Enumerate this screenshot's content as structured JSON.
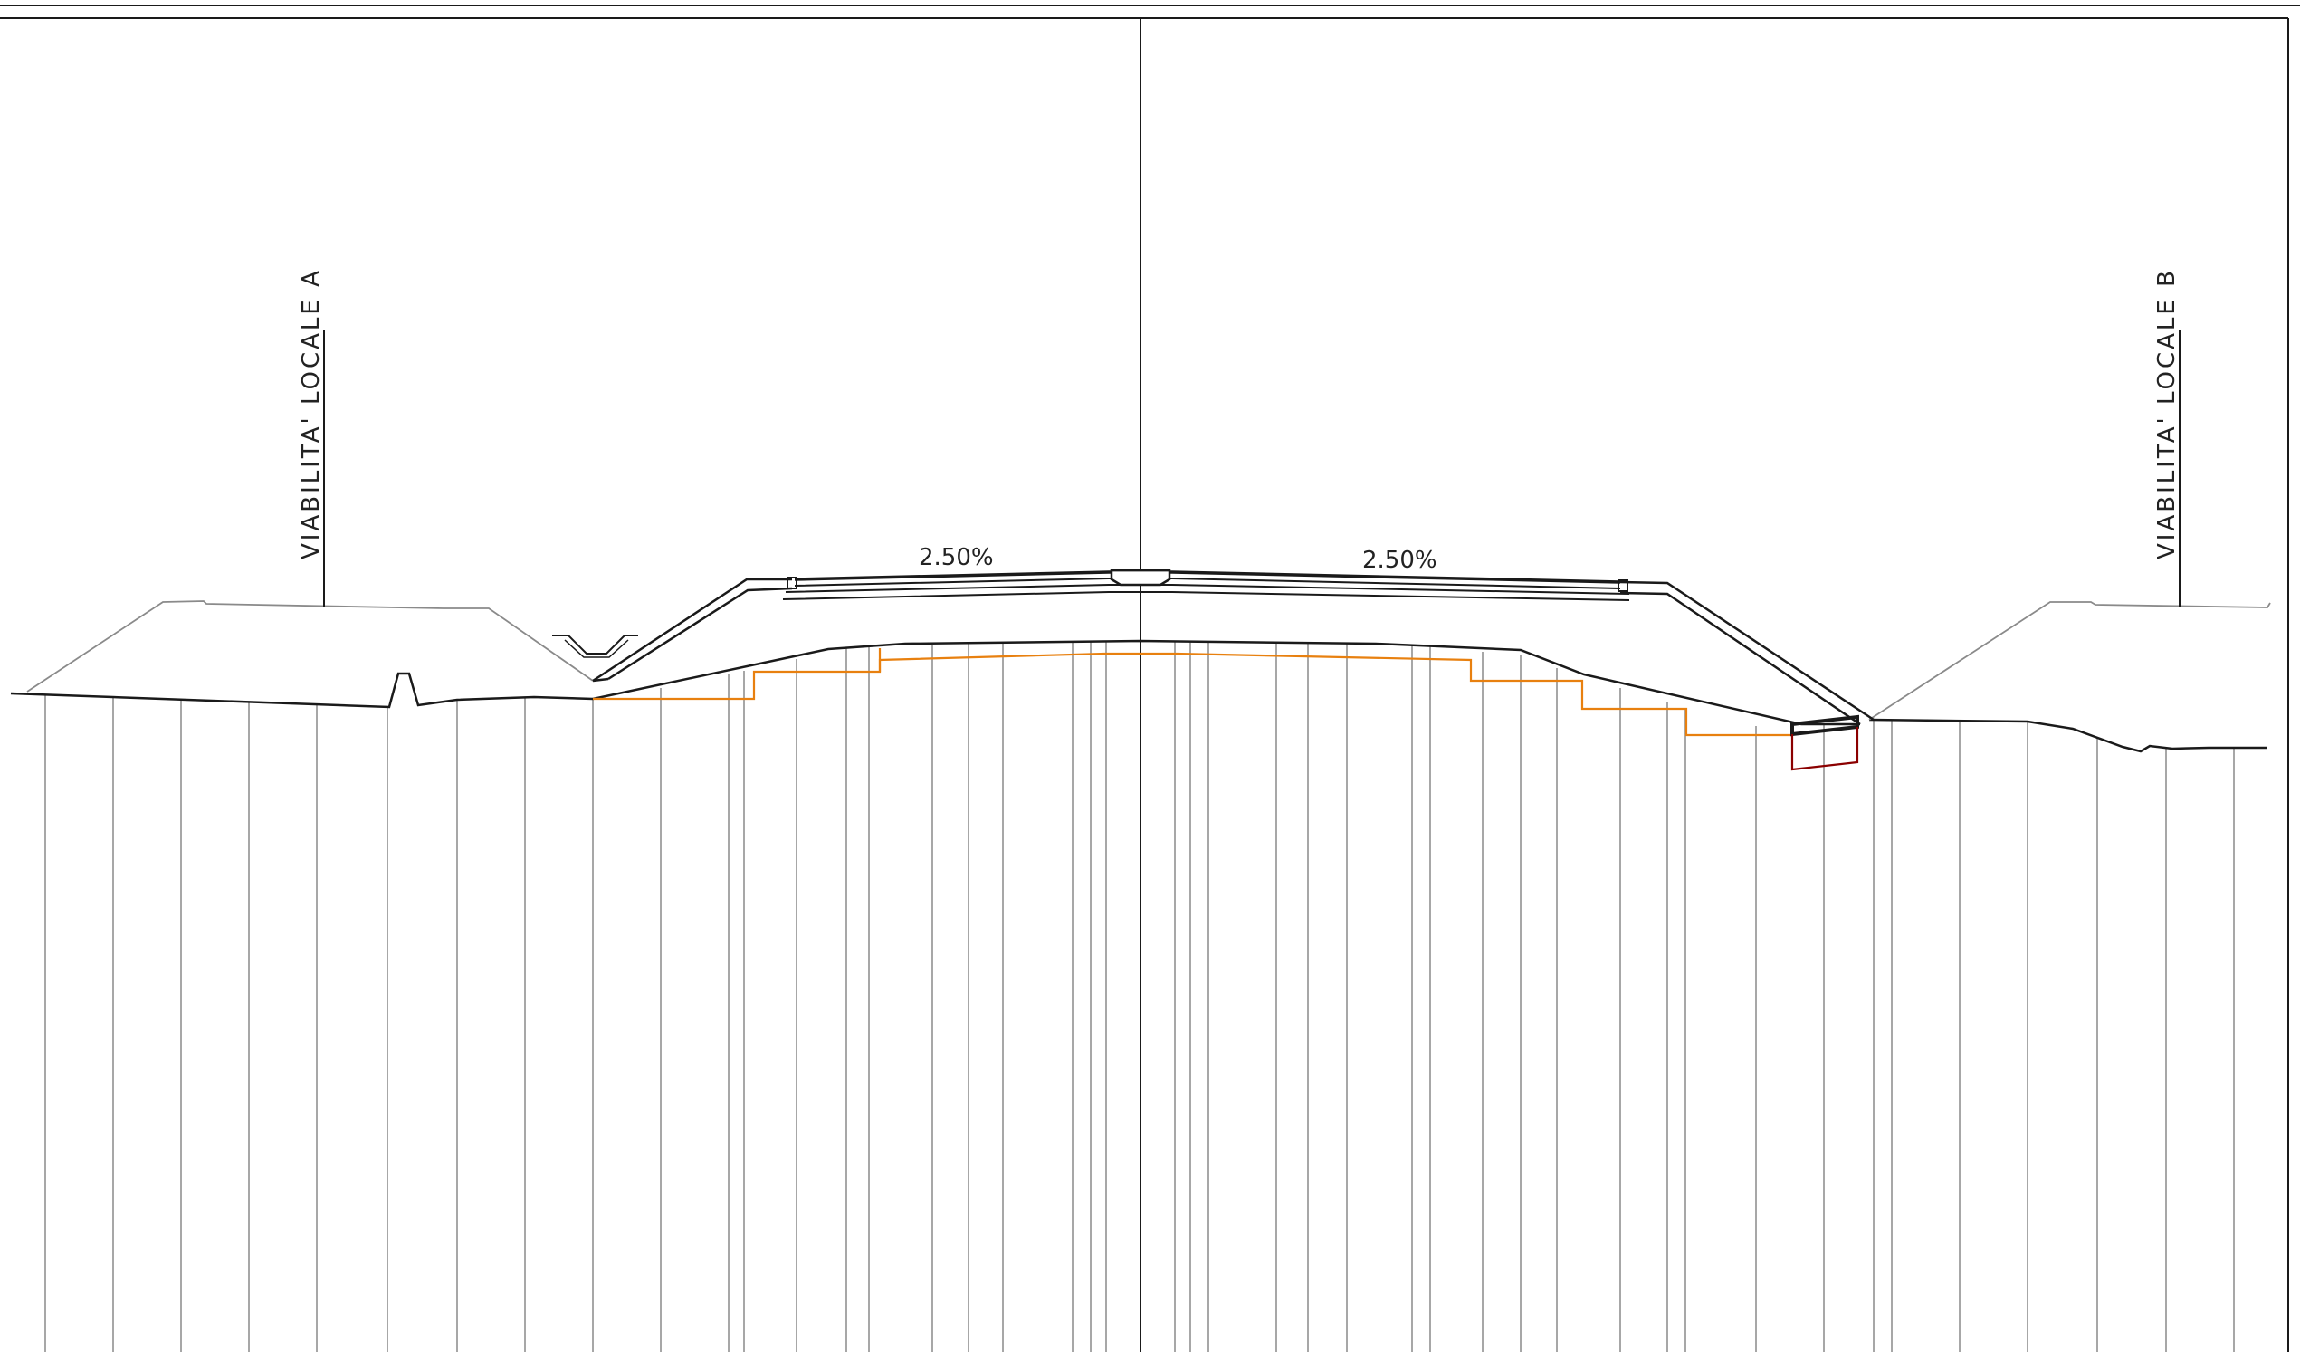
{
  "drawing": {
    "type": "road cross-section",
    "labels": {
      "local_road_a": "VIABILITA' LOCALE A",
      "local_road_b": "VIABILITA' LOCALE B",
      "slope_left": "2.50%",
      "slope_right": "2.50%"
    },
    "colors": {
      "background": "#ffffff",
      "linework": "#1a1a1a",
      "thin_lines": "#8a8a8a",
      "excavation_steps": "#e8800f",
      "drainage_section": "#8b0000"
    }
  }
}
